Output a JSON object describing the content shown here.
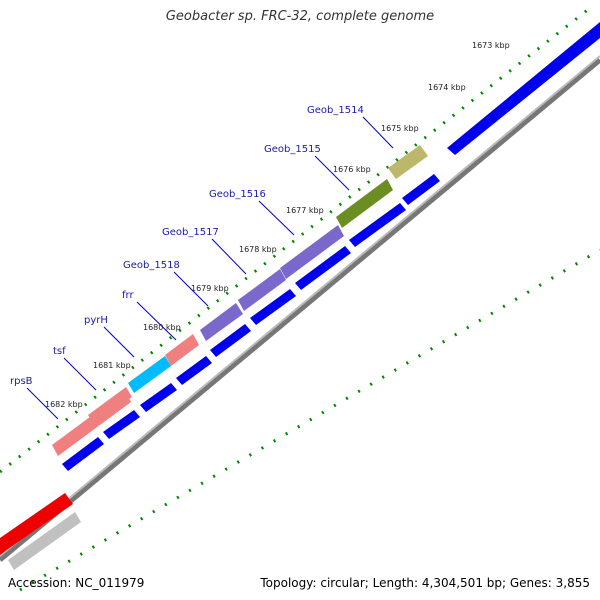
{
  "title": "Geobacter sp. FRC-32, complete genome",
  "footer": {
    "accession": "Accession: NC_011979",
    "summary": "Topology: circular; Length: 4,304,501 bp; Genes: 3,855"
  },
  "colors": {
    "backbone": "#888888",
    "cds": "#0000ee",
    "gc_dots": "#008800",
    "rpsB": "#f08080",
    "tsf": "#f08080",
    "pyrH": "#00bbff",
    "frr": "#f08080",
    "purple": "#7b68cc",
    "olive": "#6b8e23",
    "khaki": "#bdb76b",
    "red": "#ee0000",
    "grey": "#c0c0c0"
  },
  "ticks": [
    "1673 kbp",
    "1674 kbp",
    "1675 kbp",
    "1676 kbp",
    "1677 kbp",
    "1678 kbp",
    "1679 kbp",
    "1680 kbp",
    "1681 kbp",
    "1682 kbp"
  ],
  "genes": [
    "rpsB",
    "tsf",
    "pyrH",
    "frr",
    "Geob_1518",
    "Geob_1517",
    "Geob_1516",
    "Geob_1515",
    "Geob_1514"
  ]
}
